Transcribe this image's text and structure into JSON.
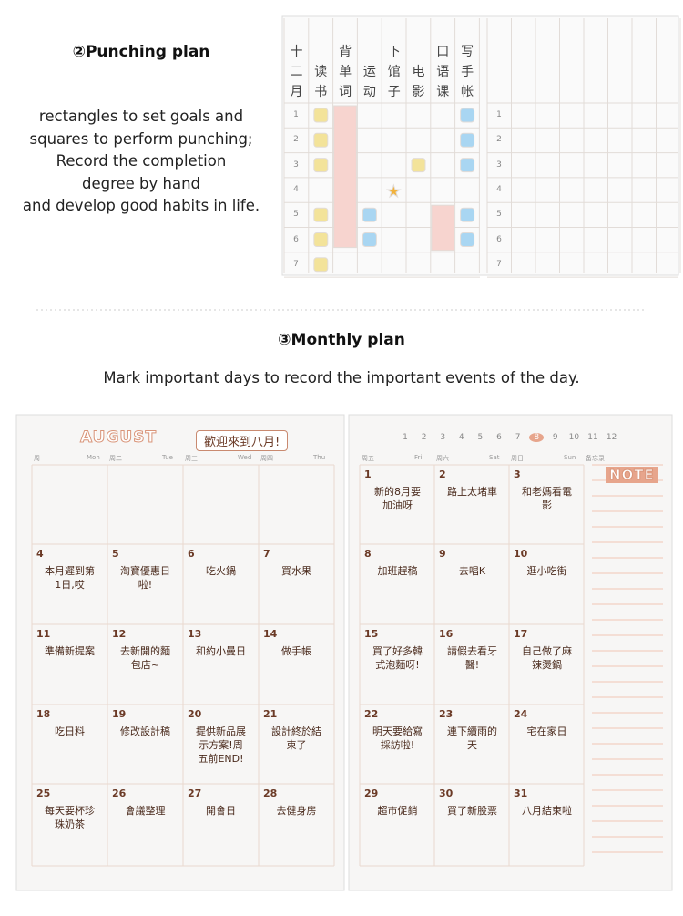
{
  "punching": {
    "title": "②Punching plan",
    "description": [
      "rectangles to set goals and",
      "squares to perform punching;",
      "Record the completion",
      "degree by hand",
      "and develop good habits in life."
    ],
    "month_header": "十二月",
    "habits": [
      "读书",
      "背单词",
      "运动",
      "下馆子",
      "电影",
      "口语课",
      "写手帐"
    ],
    "rows": [
      "1",
      "2",
      "3",
      "4",
      "5",
      "6",
      "7"
    ]
  },
  "monthly": {
    "title": "③Monthly plan",
    "subtitle": "Mark important days to record the important events of the day.",
    "month": "AUGUST",
    "banner": "歡迎來到八月!",
    "note_label": "NOTE",
    "month_numbers": [
      "1",
      "2",
      "3",
      "4",
      "5",
      "6",
      "7",
      "8",
      "9",
      "10",
      "11",
      "12"
    ],
    "weekdays": [
      [
        "周一",
        "Mon"
      ],
      [
        "周二",
        "Tue"
      ],
      [
        "周三",
        "Wed"
      ],
      [
        "周四",
        "Thu"
      ],
      [
        "周五",
        "Fri"
      ],
      [
        "周六",
        "Sat"
      ],
      [
        "周日",
        "Sun"
      ],
      [
        "备忘录",
        ""
      ]
    ],
    "days": [
      {
        "day": "1",
        "note": "新的8月要加油呀"
      },
      {
        "day": "2",
        "note": "路上太堵車"
      },
      {
        "day": "3",
        "note": "和老媽看電影"
      },
      {
        "day": "4",
        "note": "本月遲到第1日,哎"
      },
      {
        "day": "5",
        "note": "淘寶優惠日啦!"
      },
      {
        "day": "6",
        "note": "吃火鍋"
      },
      {
        "day": "7",
        "note": "買水果"
      },
      {
        "day": "8",
        "note": "加班趕稿"
      },
      {
        "day": "9",
        "note": "去唱K"
      },
      {
        "day": "10",
        "note": "逛小吃街"
      },
      {
        "day": "11",
        "note": "準備新提案"
      },
      {
        "day": "12",
        "note": "去新開的麵包店~"
      },
      {
        "day": "13",
        "note": "和約小曼日"
      },
      {
        "day": "14",
        "note": "做手帳"
      },
      {
        "day": "15",
        "note": "買了好多韓式泡麵呀!"
      },
      {
        "day": "16",
        "note": "請假去看牙醫!"
      },
      {
        "day": "17",
        "note": "自己做了麻辣燙鍋"
      },
      {
        "day": "18",
        "note": "吃日料"
      },
      {
        "day": "19",
        "note": "修改設計稿"
      },
      {
        "day": "20",
        "note": "提供新品展示方案!周五前END!"
      },
      {
        "day": "21",
        "note": "設計終於結束了"
      },
      {
        "day": "22",
        "note": "明天要給寫採訪啦!"
      },
      {
        "day": "23",
        "note": "連下續雨的天"
      },
      {
        "day": "24",
        "note": "宅在家日"
      },
      {
        "day": "25",
        "note": "每天要杯珍珠奶茶"
      },
      {
        "day": "26",
        "note": "會議整理"
      },
      {
        "day": "27",
        "note": "開會日"
      },
      {
        "day": "28",
        "note": "去健身房"
      },
      {
        "day": "29",
        "note": "超市促銷"
      },
      {
        "day": "30",
        "note": "買了新股票"
      },
      {
        "day": "31",
        "note": "八月結束啦"
      }
    ]
  }
}
